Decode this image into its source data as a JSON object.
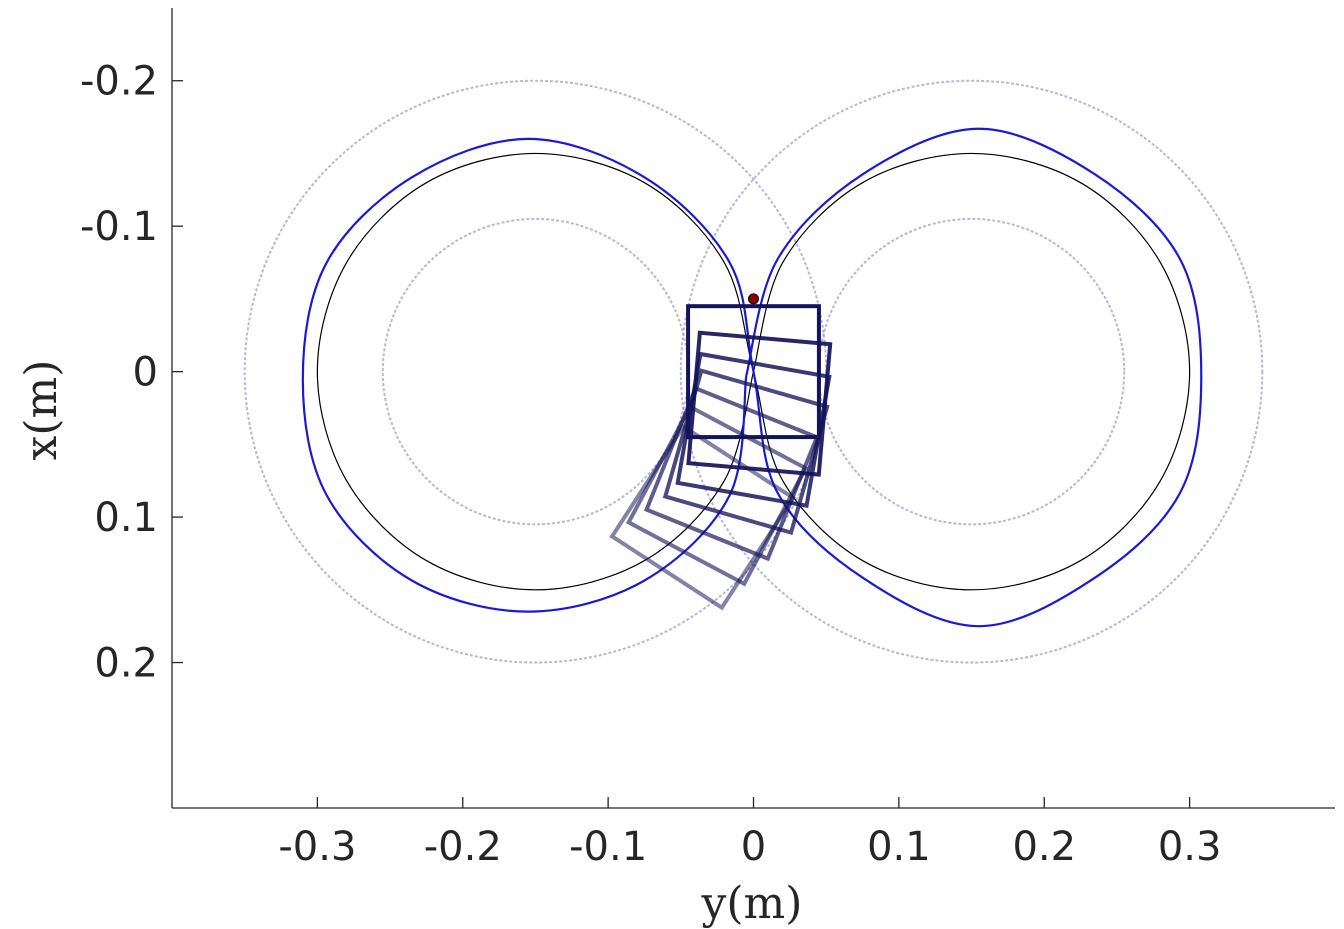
{
  "chart_data": {
    "type": "line",
    "xlabel": "y(m)",
    "ylabel": "x(m)",
    "xlim": [
      -0.4,
      0.4
    ],
    "ylim": [
      -0.25,
      0.3
    ],
    "y_reversed": true,
    "xticks": [
      -0.3,
      -0.2,
      -0.1,
      0,
      0.1,
      0.2,
      0.3
    ],
    "yticks": [
      -0.2,
      -0.1,
      0,
      0.1,
      0.2
    ],
    "rings": [
      {
        "center_x": -0.15,
        "center_y": 0,
        "r": 0.105,
        "color": "#9a9ac0"
      },
      {
        "center_x": -0.15,
        "center_y": 0,
        "r": 0.2,
        "color": "#9a9ac0"
      },
      {
        "center_x": 0.15,
        "center_y": 0,
        "r": 0.105,
        "color": "#9a9ac0"
      },
      {
        "center_x": 0.15,
        "center_y": 0,
        "r": 0.2,
        "color": "#9a9ac0"
      }
    ],
    "series": [
      {
        "color": "#000000",
        "x": [
          0,
          0.0201,
          0.075,
          0.15,
          0.225,
          0.2799,
          0.3,
          0.2799,
          0.225,
          0.15,
          0.075,
          0.0201,
          0,
          -0.0201,
          -0.075,
          -0.15,
          -0.225,
          -0.2799,
          -0.3,
          -0.2799,
          -0.225,
          -0.15,
          -0.075,
          -0.0201,
          0
        ],
        "values": [
          0,
          -0.075,
          -0.1299,
          -0.15,
          -0.1299,
          -0.075,
          0,
          0.075,
          0.1299,
          0.15,
          0.1299,
          0.075,
          0,
          -0.075,
          -0.1299,
          -0.15,
          -0.1299,
          -0.075,
          0,
          0.075,
          0.1299,
          0.15,
          0.1299,
          0.075,
          0
        ]
      },
      {
        "color": "#1a1ad6",
        "x": [
          -0.005,
          0.0164,
          0.075,
          0.155,
          0.235,
          0.2936,
          0.308,
          0.2936,
          0.235,
          0.155,
          0.075,
          0.0164,
          0,
          -0.0164,
          -0.075,
          -0.155,
          -0.235,
          -0.2936,
          -0.31,
          -0.2936,
          -0.235,
          -0.155,
          -0.075,
          -0.0164,
          -0.005
        ],
        "values": [
          0.003,
          -0.077,
          -0.1356,
          -0.167,
          -0.1356,
          -0.077,
          0.003,
          0.083,
          0.1416,
          0.175,
          0.1416,
          0.083,
          0,
          -0.075,
          -0.1336,
          -0.16,
          -0.1336,
          -0.075,
          0.005,
          0.085,
          0.1436,
          0.165,
          0.1436,
          0.085,
          0.003
        ]
      }
    ],
    "box_size": 0.09,
    "boxes": [
      {
        "x": -0.035,
        "y": 0.1,
        "angle": 33
      },
      {
        "x": -0.025,
        "y": 0.085,
        "angle": 28
      },
      {
        "x": -0.015,
        "y": 0.07,
        "angle": 22
      },
      {
        "x": -0.005,
        "y": 0.055,
        "angle": 16
      },
      {
        "x": 0,
        "y": 0.04,
        "angle": 10
      },
      {
        "x": 0.004,
        "y": 0.022,
        "angle": 5
      },
      {
        "x": 0,
        "y": 0,
        "angle": 0
      }
    ],
    "box_color": "#14145a",
    "marker": {
      "x": 0,
      "y": -0.05,
      "color": "#8b0000"
    }
  }
}
